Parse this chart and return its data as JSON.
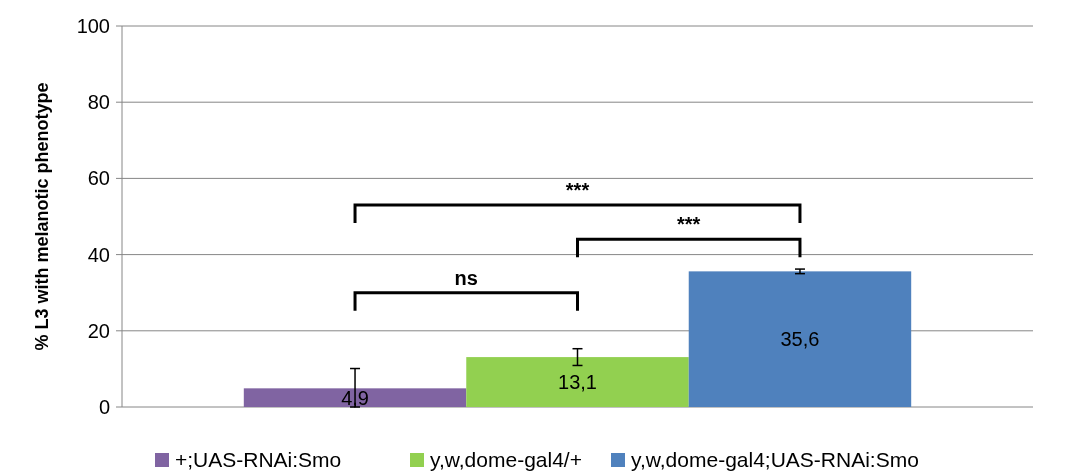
{
  "chart_data": {
    "type": "bar",
    "ylabel": "% L3 with melanotic phenotype",
    "categories": [
      null
    ],
    "series": [
      {
        "name": "+;UAS-RNAi:Smo",
        "color": "#8064a2",
        "values": [
          4.9
        ],
        "errors": [
          [
            0,
            10.1
          ]
        ],
        "value_labels": [
          "4,9"
        ]
      },
      {
        "name": "y,w,dome-gal4/+",
        "color": "#92d050",
        "values": [
          13.1
        ],
        "errors": [
          2.2
        ],
        "value_labels": [
          "13,1"
        ]
      },
      {
        "name": "y,w,dome-gal4;UAS-RNAi:Smo",
        "color": "#4f81bd",
        "values": [
          35.6
        ],
        "errors": [
          0.6
        ],
        "value_labels": [
          "35,6"
        ]
      }
    ],
    "ylim": [
      0,
      100
    ],
    "yticks": [
      0,
      20,
      40,
      60,
      80,
      100
    ],
    "grid": "y",
    "legend": "bottom",
    "annotations": [
      "ns",
      "***",
      "***"
    ]
  }
}
